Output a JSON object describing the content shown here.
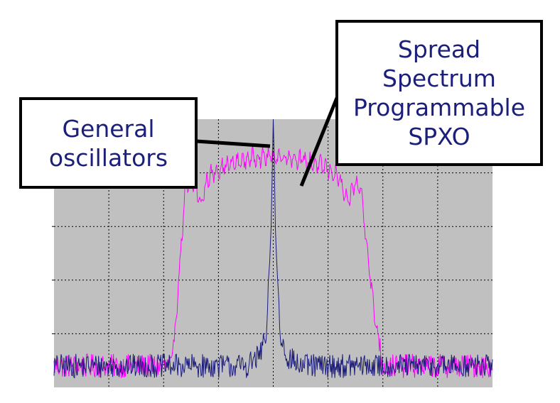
{
  "chart_data": {
    "type": "line",
    "title": "",
    "xlabel": "",
    "ylabel": "",
    "xlim": [
      0,
      100
    ],
    "ylim": [
      0,
      100
    ],
    "grid": true,
    "x_gridlines": [
      12.5,
      25,
      37.5,
      50,
      62.5,
      75,
      87.5
    ],
    "y_gridlines": [
      20,
      40,
      60,
      80
    ],
    "colors": {
      "background": "#c0c0c0",
      "grid": "#000000"
    },
    "series": [
      {
        "color": "#ff00ff",
        "x": [
          0,
          27,
          30,
          32,
          33.5,
          35,
          38,
          42,
          46,
          50,
          54,
          58,
          62,
          65,
          67,
          68.5,
          70,
          73,
          75,
          100
        ],
        "values": [
          8,
          8,
          75,
          76,
          68,
          78,
          82,
          84,
          86,
          86,
          86,
          84,
          82,
          78,
          68,
          76,
          74,
          28,
          8,
          8
        ]
      },
      {
        "color": "#1a1a7a",
        "x": [
          0,
          44,
          47,
          48.5,
          49.5,
          50,
          50.5,
          51.5,
          53,
          56,
          100
        ],
        "values": [
          8,
          8,
          12,
          20,
          60,
          100,
          60,
          20,
          12,
          8,
          8
        ]
      }
    ]
  },
  "callouts": {
    "general": "General\noscillators",
    "spread": "Spread\nSpectrum\nProgrammable\nSPXO"
  }
}
